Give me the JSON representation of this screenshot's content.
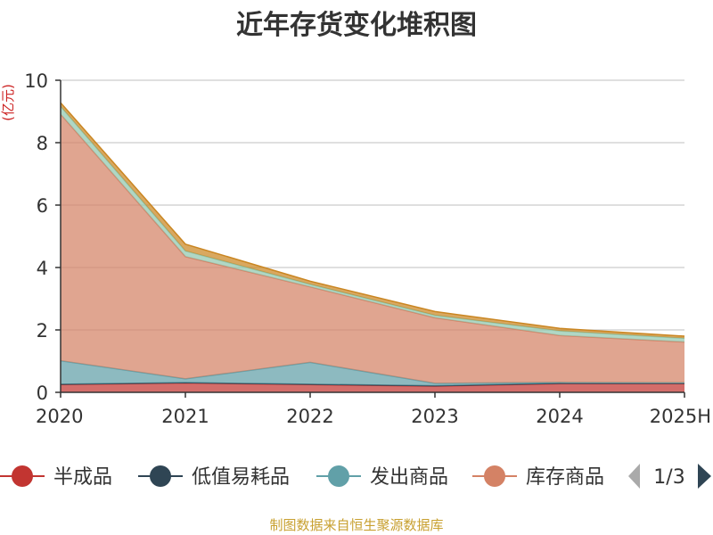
{
  "chart_data": {
    "type": "area",
    "title": "近年存货变化堆积图",
    "ylabel": "(亿元)",
    "xlabel": "",
    "categories": [
      "2020",
      "2021",
      "2022",
      "2023",
      "2024",
      "2025H"
    ],
    "ylim": [
      0,
      10
    ],
    "yticks": [
      0,
      2,
      4,
      6,
      8,
      10
    ],
    "grid": true,
    "stacked": true,
    "series": [
      {
        "name": "半成品",
        "color": "#c23531",
        "values": [
          0.25,
          0.3,
          0.25,
          0.2,
          0.28,
          0.28
        ]
      },
      {
        "name": "低值易耗品",
        "color": "#2f4554",
        "values": [
          0.01,
          0.01,
          0.01,
          0.01,
          0.01,
          0.01
        ]
      },
      {
        "name": "发出商品",
        "color": "#61a0a8",
        "values": [
          0.75,
          0.12,
          0.7,
          0.08,
          0.03,
          0.02
        ]
      },
      {
        "name": "库存商品",
        "color": "#d48265",
        "values": [
          7.9,
          3.92,
          2.42,
          2.1,
          1.5,
          1.3
        ]
      },
      {
        "name": "",
        "color": "#91c7ae",
        "values": [
          0.25,
          0.18,
          0.08,
          0.08,
          0.15,
          0.12
        ]
      },
      {
        "name": "",
        "color": "#ca8622",
        "values": [
          0.12,
          0.22,
          0.1,
          0.12,
          0.08,
          0.07
        ]
      }
    ],
    "legend": {
      "position": "bottom",
      "page": "1/3"
    }
  },
  "source": "制图数据来自恒生聚源数据库"
}
